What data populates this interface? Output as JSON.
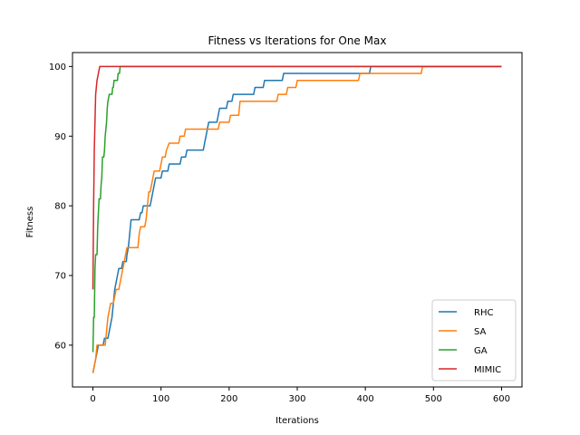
{
  "chart_data": {
    "type": "line",
    "title": "Fitness vs Iterations for One Max",
    "xlabel": "Iterations",
    "ylabel": "Fitness",
    "xlim": [
      -30,
      630
    ],
    "ylim": [
      54,
      102
    ],
    "xticks": [
      0,
      100,
      200,
      300,
      400,
      500,
      600
    ],
    "yticks": [
      60,
      70,
      80,
      90,
      100
    ],
    "grid": false,
    "legend_position": "lower-right",
    "series": [
      {
        "name": "RHC",
        "color": "#1f77b4",
        "points": [
          [
            0,
            56
          ],
          [
            2,
            57
          ],
          [
            4,
            58
          ],
          [
            6,
            59
          ],
          [
            8,
            60
          ],
          [
            15,
            60
          ],
          [
            17,
            61
          ],
          [
            22,
            61
          ],
          [
            24,
            62
          ],
          [
            26,
            63
          ],
          [
            28,
            64
          ],
          [
            30,
            66
          ],
          [
            32,
            68
          ],
          [
            34,
            69
          ],
          [
            36,
            70
          ],
          [
            38,
            71
          ],
          [
            42,
            71
          ],
          [
            44,
            72
          ],
          [
            49,
            72
          ],
          [
            50,
            73
          ],
          [
            52,
            74
          ],
          [
            54,
            76
          ],
          [
            56,
            78
          ],
          [
            68,
            78
          ],
          [
            70,
            79
          ],
          [
            72,
            79
          ],
          [
            74,
            80
          ],
          [
            84,
            80
          ],
          [
            86,
            81
          ],
          [
            88,
            82
          ],
          [
            90,
            83
          ],
          [
            92,
            84
          ],
          [
            100,
            84
          ],
          [
            102,
            85
          ],
          [
            110,
            85
          ],
          [
            112,
            86
          ],
          [
            128,
            86
          ],
          [
            130,
            87
          ],
          [
            136,
            87
          ],
          [
            138,
            88
          ],
          [
            162,
            88
          ],
          [
            164,
            89
          ],
          [
            166,
            90
          ],
          [
            168,
            91
          ],
          [
            170,
            92
          ],
          [
            182,
            92
          ],
          [
            184,
            93
          ],
          [
            186,
            94
          ],
          [
            196,
            94
          ],
          [
            198,
            95
          ],
          [
            204,
            95
          ],
          [
            206,
            96
          ],
          [
            236,
            96
          ],
          [
            238,
            97
          ],
          [
            250,
            97
          ],
          [
            252,
            98
          ],
          [
            278,
            98
          ],
          [
            280,
            99
          ],
          [
            406,
            99
          ],
          [
            408,
            100
          ],
          [
            600,
            100
          ]
        ]
      },
      {
        "name": "SA",
        "color": "#ff7f0e",
        "points": [
          [
            0,
            56
          ],
          [
            2,
            57
          ],
          [
            4,
            58
          ],
          [
            6,
            60
          ],
          [
            18,
            60
          ],
          [
            20,
            62
          ],
          [
            22,
            64
          ],
          [
            24,
            65
          ],
          [
            26,
            66
          ],
          [
            30,
            66
          ],
          [
            32,
            67
          ],
          [
            34,
            68
          ],
          [
            38,
            68
          ],
          [
            40,
            69
          ],
          [
            42,
            70
          ],
          [
            44,
            71
          ],
          [
            46,
            72
          ],
          [
            48,
            73
          ],
          [
            50,
            74
          ],
          [
            66,
            74
          ],
          [
            68,
            76
          ],
          [
            70,
            77
          ],
          [
            76,
            77
          ],
          [
            78,
            78
          ],
          [
            80,
            80
          ],
          [
            82,
            82
          ],
          [
            84,
            82
          ],
          [
            86,
            83
          ],
          [
            88,
            84
          ],
          [
            90,
            85
          ],
          [
            98,
            85
          ],
          [
            100,
            86
          ],
          [
            102,
            87
          ],
          [
            106,
            87
          ],
          [
            108,
            88
          ],
          [
            112,
            89
          ],
          [
            126,
            89
          ],
          [
            128,
            90
          ],
          [
            134,
            90
          ],
          [
            136,
            91
          ],
          [
            184,
            91
          ],
          [
            186,
            92
          ],
          [
            200,
            92
          ],
          [
            202,
            93
          ],
          [
            214,
            93
          ],
          [
            216,
            95
          ],
          [
            270,
            95
          ],
          [
            272,
            96
          ],
          [
            284,
            96
          ],
          [
            286,
            97
          ],
          [
            298,
            97
          ],
          [
            300,
            98
          ],
          [
            390,
            98
          ],
          [
            392,
            99
          ],
          [
            482,
            99
          ],
          [
            484,
            100
          ],
          [
            600,
            100
          ]
        ]
      },
      {
        "name": "GA",
        "color": "#2ca02c",
        "points": [
          [
            0,
            59
          ],
          [
            1,
            64
          ],
          [
            2,
            64
          ],
          [
            3,
            71
          ],
          [
            4,
            73
          ],
          [
            6,
            73
          ],
          [
            7,
            77
          ],
          [
            8,
            79
          ],
          [
            9,
            81
          ],
          [
            11,
            81
          ],
          [
            12,
            83
          ],
          [
            13,
            84
          ],
          [
            14,
            87
          ],
          [
            16,
            87
          ],
          [
            17,
            88
          ],
          [
            18,
            90
          ],
          [
            20,
            92
          ],
          [
            21,
            94
          ],
          [
            22,
            95
          ],
          [
            24,
            96
          ],
          [
            28,
            96
          ],
          [
            29,
            97
          ],
          [
            30,
            97
          ],
          [
            31,
            98
          ],
          [
            36,
            98
          ],
          [
            37,
            99
          ],
          [
            39,
            99
          ],
          [
            40,
            100
          ],
          [
            600,
            100
          ]
        ]
      },
      {
        "name": "MIMIC",
        "color": "#d62728",
        "points": [
          [
            0,
            68
          ],
          [
            1,
            80
          ],
          [
            2,
            88
          ],
          [
            3,
            92
          ],
          [
            4,
            96
          ],
          [
            6,
            98
          ],
          [
            8,
            99
          ],
          [
            10,
            100
          ],
          [
            600,
            100
          ]
        ]
      }
    ]
  }
}
